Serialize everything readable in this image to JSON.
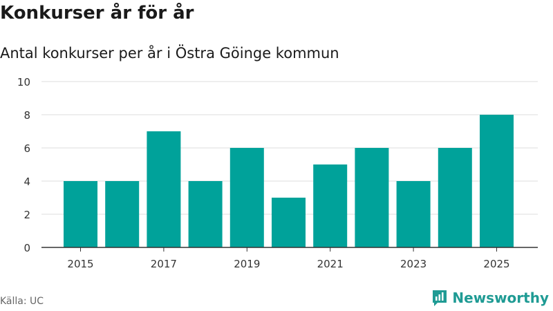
{
  "title": "Konkurser år för år",
  "subtitle": "Antal konkurser per år i Östra Göinge kommun",
  "source": "Källa: UC",
  "brand": "Newsworthy",
  "colors": {
    "bar": "#00a29a",
    "brand": "#1f9b94",
    "grid": "#dddddd",
    "axis": "#333333"
  },
  "chart_data": {
    "type": "bar",
    "title": "Konkurser år för år",
    "subtitle": "Antal konkurser per år i Östra Göinge kommun",
    "xlabel": "",
    "ylabel": "",
    "categories": [
      "2015",
      "2016",
      "2017",
      "2018",
      "2019",
      "2020",
      "2021",
      "2022",
      "2023",
      "2024",
      "2025"
    ],
    "values": [
      4,
      4,
      7,
      4,
      6,
      3,
      5,
      6,
      4,
      6,
      8
    ],
    "x_tick_labels": [
      "2015",
      "2017",
      "2019",
      "2021",
      "2023",
      "2025"
    ],
    "y_ticks": [
      0,
      2,
      4,
      6,
      8,
      10
    ],
    "ylim": [
      0,
      10
    ],
    "grid": true
  }
}
